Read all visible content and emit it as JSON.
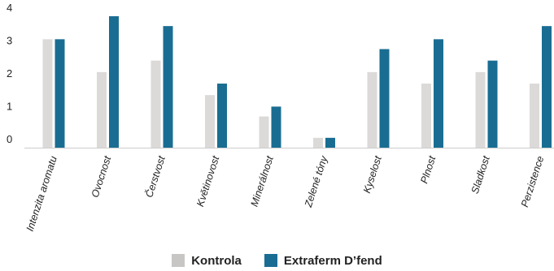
{
  "chart_data": {
    "type": "bar",
    "categories": [
      "Intenzita aromatu",
      "Ovocnost",
      "Čerstvost",
      "Květinovost",
      "Minerálnost",
      "Zelené tóny",
      "Kyselost",
      "Plnost",
      "Sladkost",
      "Perzistence"
    ],
    "series": [
      {
        "name": "Kontrola",
        "values": [
          3.3,
          2.3,
          2.65,
          1.6,
          0.95,
          0.3,
          2.3,
          1.95,
          2.3,
          1.95
        ],
        "color": "#dcdad8"
      },
      {
        "name": "Extraferm D’fend",
        "values": [
          3.3,
          4.0,
          3.7,
          1.95,
          1.25,
          0.3,
          3.0,
          3.3,
          2.65,
          3.7
        ],
        "color": "#1a6d92"
      }
    ],
    "y_ticks": [
      "0",
      "1",
      "2",
      "3",
      "4"
    ],
    "ylim": [
      0,
      4
    ],
    "grid": false,
    "legend_position": "bottom-center"
  }
}
